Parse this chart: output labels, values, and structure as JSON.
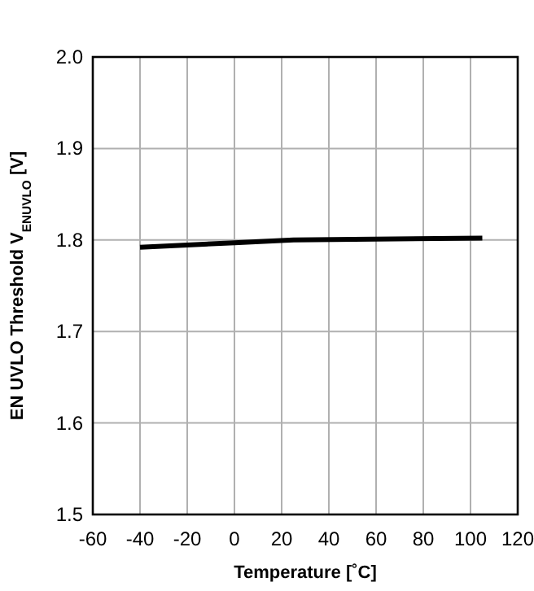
{
  "chart_data": {
    "type": "line",
    "xlabel": "Temperature [˚C]",
    "ylabel": "EN UVLO Threshold V$_{ENUVLO}$  [V]",
    "x": [
      -40,
      0,
      25,
      105
    ],
    "series": [
      {
        "color": "#000000",
        "values": [
          1.792,
          1.797,
          1.8,
          1.802
        ]
      }
    ],
    "xlim": [
      -60,
      120
    ],
    "xticks": [
      -60,
      -40,
      -20,
      0,
      20,
      40,
      60,
      80,
      100,
      120
    ],
    "ylim": [
      1.5,
      2.0
    ],
    "yticks": [
      {
        "value": 1.5,
        "label": "1.5"
      },
      {
        "value": 1.6,
        "label": "1.6"
      },
      {
        "value": 1.7,
        "label": "1.7"
      },
      {
        "value": 1.8,
        "label": "1.8"
      },
      {
        "value": 1.9,
        "label": "1.9"
      },
      {
        "value": 2.0,
        "label": "2.0"
      }
    ],
    "grid": true,
    "marker": "none",
    "line_style": "solid"
  }
}
